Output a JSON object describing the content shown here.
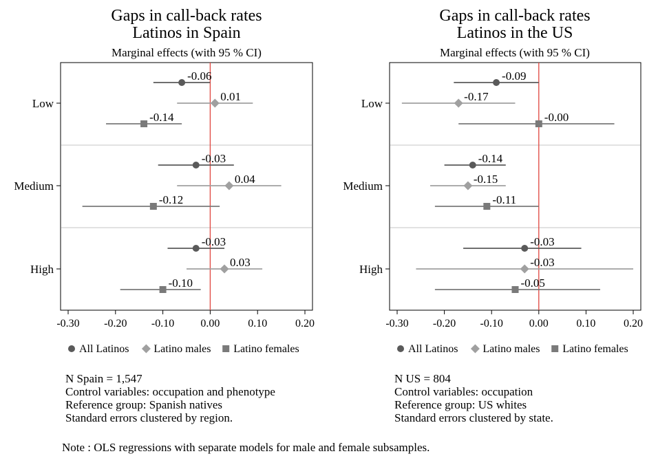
{
  "chart_data": [
    {
      "type": "scatter",
      "title": "Gaps in call-back rates",
      "title2": "Latinos in Spain",
      "subtitle": "Marginal effects (with 95 % CI)",
      "categories": [
        "Low",
        "Medium",
        "High"
      ],
      "xlim": [
        -0.3,
        0.2
      ],
      "xticks": [
        "-0.30",
        "-0.20",
        "-0.10",
        "0.00",
        "0.10",
        "0.20"
      ],
      "xtick_values": [
        -0.3,
        -0.2,
        -0.1,
        0.0,
        0.1,
        0.2
      ],
      "series": [
        {
          "name": "All Latinos",
          "marker": "circle",
          "color": "#5a5a5a",
          "values": [
            -0.06,
            -0.03,
            -0.03
          ],
          "labels": [
            "-0.06",
            "-0.03",
            "-0.03"
          ],
          "ci_low": [
            -0.12,
            -0.11,
            -0.09
          ],
          "ci_high": [
            0.0,
            0.05,
            0.03
          ]
        },
        {
          "name": "Latino males",
          "marker": "diamond",
          "color": "#a0a0a0",
          "values": [
            0.01,
            0.04,
            0.03
          ],
          "labels": [
            "0.01",
            "0.04",
            "0.03"
          ],
          "ci_low": [
            -0.07,
            -0.07,
            -0.05
          ],
          "ci_high": [
            0.09,
            0.15,
            0.11
          ]
        },
        {
          "name": "Latino females",
          "marker": "square",
          "color": "#7a7a7a",
          "values": [
            -0.14,
            -0.12,
            -0.1
          ],
          "labels": [
            "-0.14",
            "-0.12",
            "-0.10"
          ],
          "ci_low": [
            -0.22,
            -0.27,
            -0.19
          ],
          "ci_high": [
            -0.06,
            0.02,
            -0.02
          ]
        }
      ],
      "info": [
        "N Spain = 1,547",
        "Control variables: occupation and phenotype",
        "Reference group: Spanish natives",
        "Standard errors clustered by region."
      ]
    },
    {
      "type": "scatter",
      "title": "Gaps in call-back rates",
      "title2": "Latinos in the US",
      "subtitle": "Marginal effects (with 95 % CI)",
      "categories": [
        "Low",
        "Medium",
        "High"
      ],
      "xlim": [
        -0.3,
        0.2
      ],
      "xticks": [
        "-0.30",
        "-0.20",
        "-0.10",
        "0.00",
        "0.10",
        "0.20"
      ],
      "xtick_values": [
        -0.3,
        -0.2,
        -0.1,
        0.0,
        0.1,
        0.2
      ],
      "series": [
        {
          "name": "All Latinos",
          "marker": "circle",
          "color": "#5a5a5a",
          "values": [
            -0.09,
            -0.14,
            -0.03
          ],
          "labels": [
            "-0.09",
            "-0.14",
            "-0.03"
          ],
          "ci_low": [
            -0.18,
            -0.2,
            -0.16
          ],
          "ci_high": [
            0.0,
            -0.07,
            0.09
          ]
        },
        {
          "name": "Latino males",
          "marker": "diamond",
          "color": "#a0a0a0",
          "values": [
            -0.17,
            -0.15,
            -0.03
          ],
          "labels": [
            "-0.17",
            "-0.15",
            "-0.03"
          ],
          "ci_low": [
            -0.29,
            -0.23,
            -0.26
          ],
          "ci_high": [
            -0.05,
            -0.07,
            0.2
          ]
        },
        {
          "name": "Latino females",
          "marker": "square",
          "color": "#7a7a7a",
          "values": [
            -0.0,
            -0.11,
            -0.05
          ],
          "labels": [
            "-0.00",
            "-0.11",
            "-0.05"
          ],
          "ci_low": [
            -0.17,
            -0.22,
            -0.22
          ],
          "ci_high": [
            0.16,
            0.0,
            0.13
          ]
        }
      ],
      "info": [
        "N US = 804",
        "Control variables: occupation",
        "Reference group: US whites",
        "Standard errors clustered by state."
      ]
    }
  ],
  "note": "Note : OLS regressions with separate models for male and female subsamples.",
  "colors": {
    "reference_line": "#e0453e",
    "separator": "#d9d9d9",
    "axis": "#000000"
  }
}
